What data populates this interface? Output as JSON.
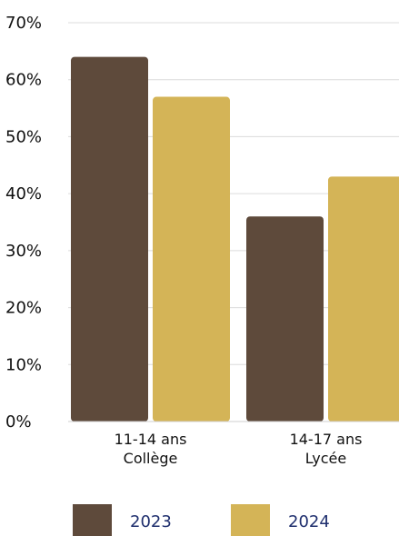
{
  "chart_data": {
    "type": "bar",
    "categories": [
      [
        "11-14 ans",
        "Collège"
      ],
      [
        "14-17 ans",
        "Lycée"
      ]
    ],
    "series": [
      {
        "name": "2023",
        "values": [
          64,
          36
        ],
        "color": "#5e4a3b"
      },
      {
        "name": "2024",
        "values": [
          57,
          43
        ],
        "color": "#d4b457"
      }
    ],
    "yticks": [
      "0%",
      "10%",
      "20%",
      "30%",
      "40%",
      "50%",
      "60%",
      "70%"
    ],
    "ylim": [
      0,
      70
    ],
    "grid": true,
    "legend_position": "bottom-left",
    "title": "",
    "xlabel": "",
    "ylabel": ""
  }
}
